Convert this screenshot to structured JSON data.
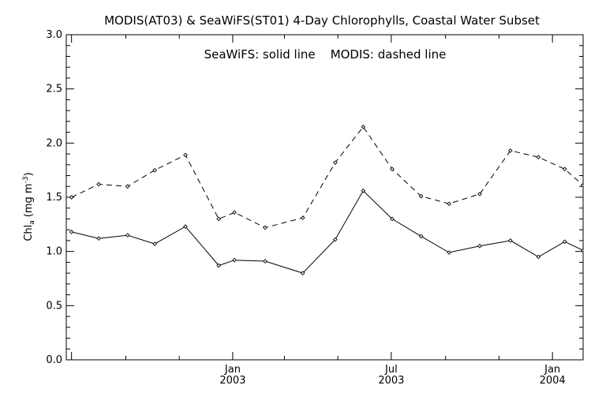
{
  "chart_data": {
    "type": "line",
    "title": "MODIS(AT03) & SeaWiFS(ST01) 4-Day Chlorophylls, Coastal Water Subset",
    "annotation": "SeaWiFS: solid line    MODIS: dashed line",
    "ylabel_main": "Chl",
    "ylabel_sub": "a",
    "ylabel_unit": "(mg m",
    "ylabel_exp": "-3",
    "ylabel_close": ")",
    "xlabel": "",
    "ylim": [
      0.0,
      3.0
    ],
    "y_ticks": [
      "0.0",
      "0.5",
      "1.0",
      "1.5",
      "2.0",
      "2.5",
      "3.0"
    ],
    "x_ticks": [
      {
        "month": "Jan",
        "year": "2003"
      },
      {
        "month": "Jul",
        "year": "2003"
      },
      {
        "month": "Jan",
        "year": "2004"
      }
    ],
    "grid": false,
    "series": [
      {
        "name": "SeaWiFS",
        "style": "solid",
        "color": "#000000",
        "x": [
          "2002-07-01",
          "2002-08-01",
          "2002-09-03",
          "2002-10-04",
          "2002-11-08",
          "2002-12-16",
          "2003-01-03",
          "2003-02-07",
          "2003-03-22",
          "2003-04-28",
          "2003-05-30",
          "2003-07-02",
          "2003-08-04",
          "2003-09-05",
          "2003-10-10",
          "2003-11-14",
          "2003-12-16",
          "2004-01-15",
          "2004-02-05"
        ],
        "values": [
          1.18,
          1.12,
          1.15,
          1.07,
          1.23,
          0.87,
          0.92,
          0.91,
          0.8,
          1.11,
          1.56,
          1.3,
          1.14,
          0.99,
          1.05,
          1.1,
          0.95,
          1.09,
          1.01
        ]
      },
      {
        "name": "MODIS",
        "style": "dashed",
        "color": "#000000",
        "x": [
          "2002-07-01",
          "2002-08-01",
          "2002-09-03",
          "2002-10-04",
          "2002-11-08",
          "2002-12-16",
          "2003-01-03",
          "2003-02-07",
          "2003-03-22",
          "2003-04-28",
          "2003-05-30",
          "2003-07-02",
          "2003-08-04",
          "2003-09-05",
          "2003-10-10",
          "2003-11-14",
          "2003-12-16",
          "2004-01-15",
          "2004-02-05"
        ],
        "values": [
          1.5,
          1.62,
          1.6,
          1.75,
          1.89,
          1.3,
          1.36,
          1.22,
          1.31,
          1.82,
          2.15,
          1.76,
          1.51,
          1.44,
          1.53,
          1.93,
          1.87,
          1.76,
          1.61
        ]
      }
    ]
  }
}
